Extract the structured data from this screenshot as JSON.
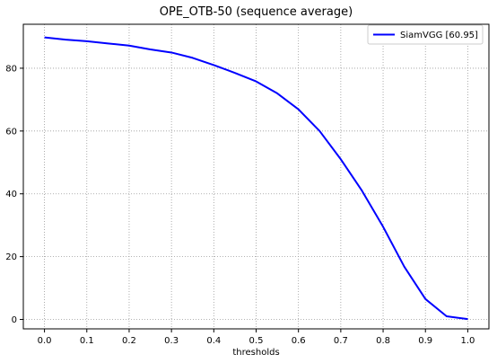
{
  "chart_data": {
    "type": "line",
    "title": "OPE_OTB-50 (sequence average)",
    "xlabel": "thresholds",
    "ylabel": "",
    "xlim": [
      -0.05,
      1.05
    ],
    "ylim": [
      -3,
      94
    ],
    "xticks": [
      "0.0",
      "0.1",
      "0.2",
      "0.3",
      "0.4",
      "0.5",
      "0.6",
      "0.7",
      "0.8",
      "0.9",
      "1.0"
    ],
    "yticks": [
      "0",
      "20",
      "40",
      "60",
      "80"
    ],
    "grid": true,
    "legend_position": "top-right",
    "series": [
      {
        "name": "SiamVGG [60.95]",
        "color": "#0000ff",
        "x": [
          0.0,
          0.05,
          0.1,
          0.15,
          0.2,
          0.25,
          0.3,
          0.35,
          0.4,
          0.45,
          0.5,
          0.55,
          0.6,
          0.65,
          0.7,
          0.75,
          0.8,
          0.85,
          0.9,
          0.95,
          1.0
        ],
        "y": [
          89.8,
          89.1,
          88.6,
          87.9,
          87.2,
          86.0,
          85.0,
          83.3,
          81.0,
          78.5,
          75.8,
          72.0,
          66.9,
          60.0,
          51.0,
          41.0,
          29.5,
          16.8,
          6.5,
          1.0,
          0.1
        ]
      }
    ]
  }
}
